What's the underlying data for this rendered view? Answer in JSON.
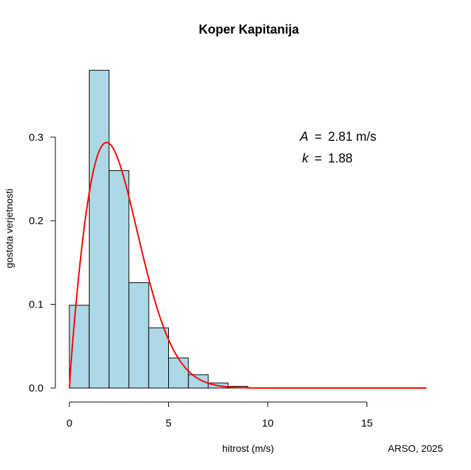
{
  "chart_data": {
    "type": "bar",
    "title": "Koper Kapitanija",
    "xlabel": "hitrost (m/s)",
    "ylabel": "gostota verjetnosti",
    "xlim": [
      0,
      18
    ],
    "ylim": [
      0,
      0.38
    ],
    "x_ticks": [
      0,
      5,
      10,
      15
    ],
    "y_ticks": [
      0.0,
      0.1,
      0.2,
      0.3
    ],
    "x_tick_labels": [
      "0",
      "5",
      "10",
      "15"
    ],
    "y_tick_labels": [
      "0.0",
      "0.1",
      "0.2",
      "0.3"
    ],
    "bin_edges": [
      0,
      1,
      2,
      3,
      4,
      5,
      6,
      7,
      8,
      9,
      10
    ],
    "values": [
      0.099,
      0.38,
      0.26,
      0.126,
      0.072,
      0.036,
      0.016,
      0.006,
      0.002,
      0.0003
    ],
    "bar_fill": "#add8e6",
    "bar_stroke": "#000000",
    "fit": {
      "distribution": "weibull",
      "A": 2.81,
      "k": 1.88,
      "color": "#ff0000",
      "x_range": [
        0,
        18
      ]
    },
    "annotations": {
      "A_symbol": "A",
      "A_eq": "=",
      "A_value": "2.81 m/s",
      "k_symbol": "k",
      "k_eq": "=",
      "k_value": "1.88"
    },
    "grid": false,
    "legend": "none"
  },
  "credit": "ARSO, 2025"
}
